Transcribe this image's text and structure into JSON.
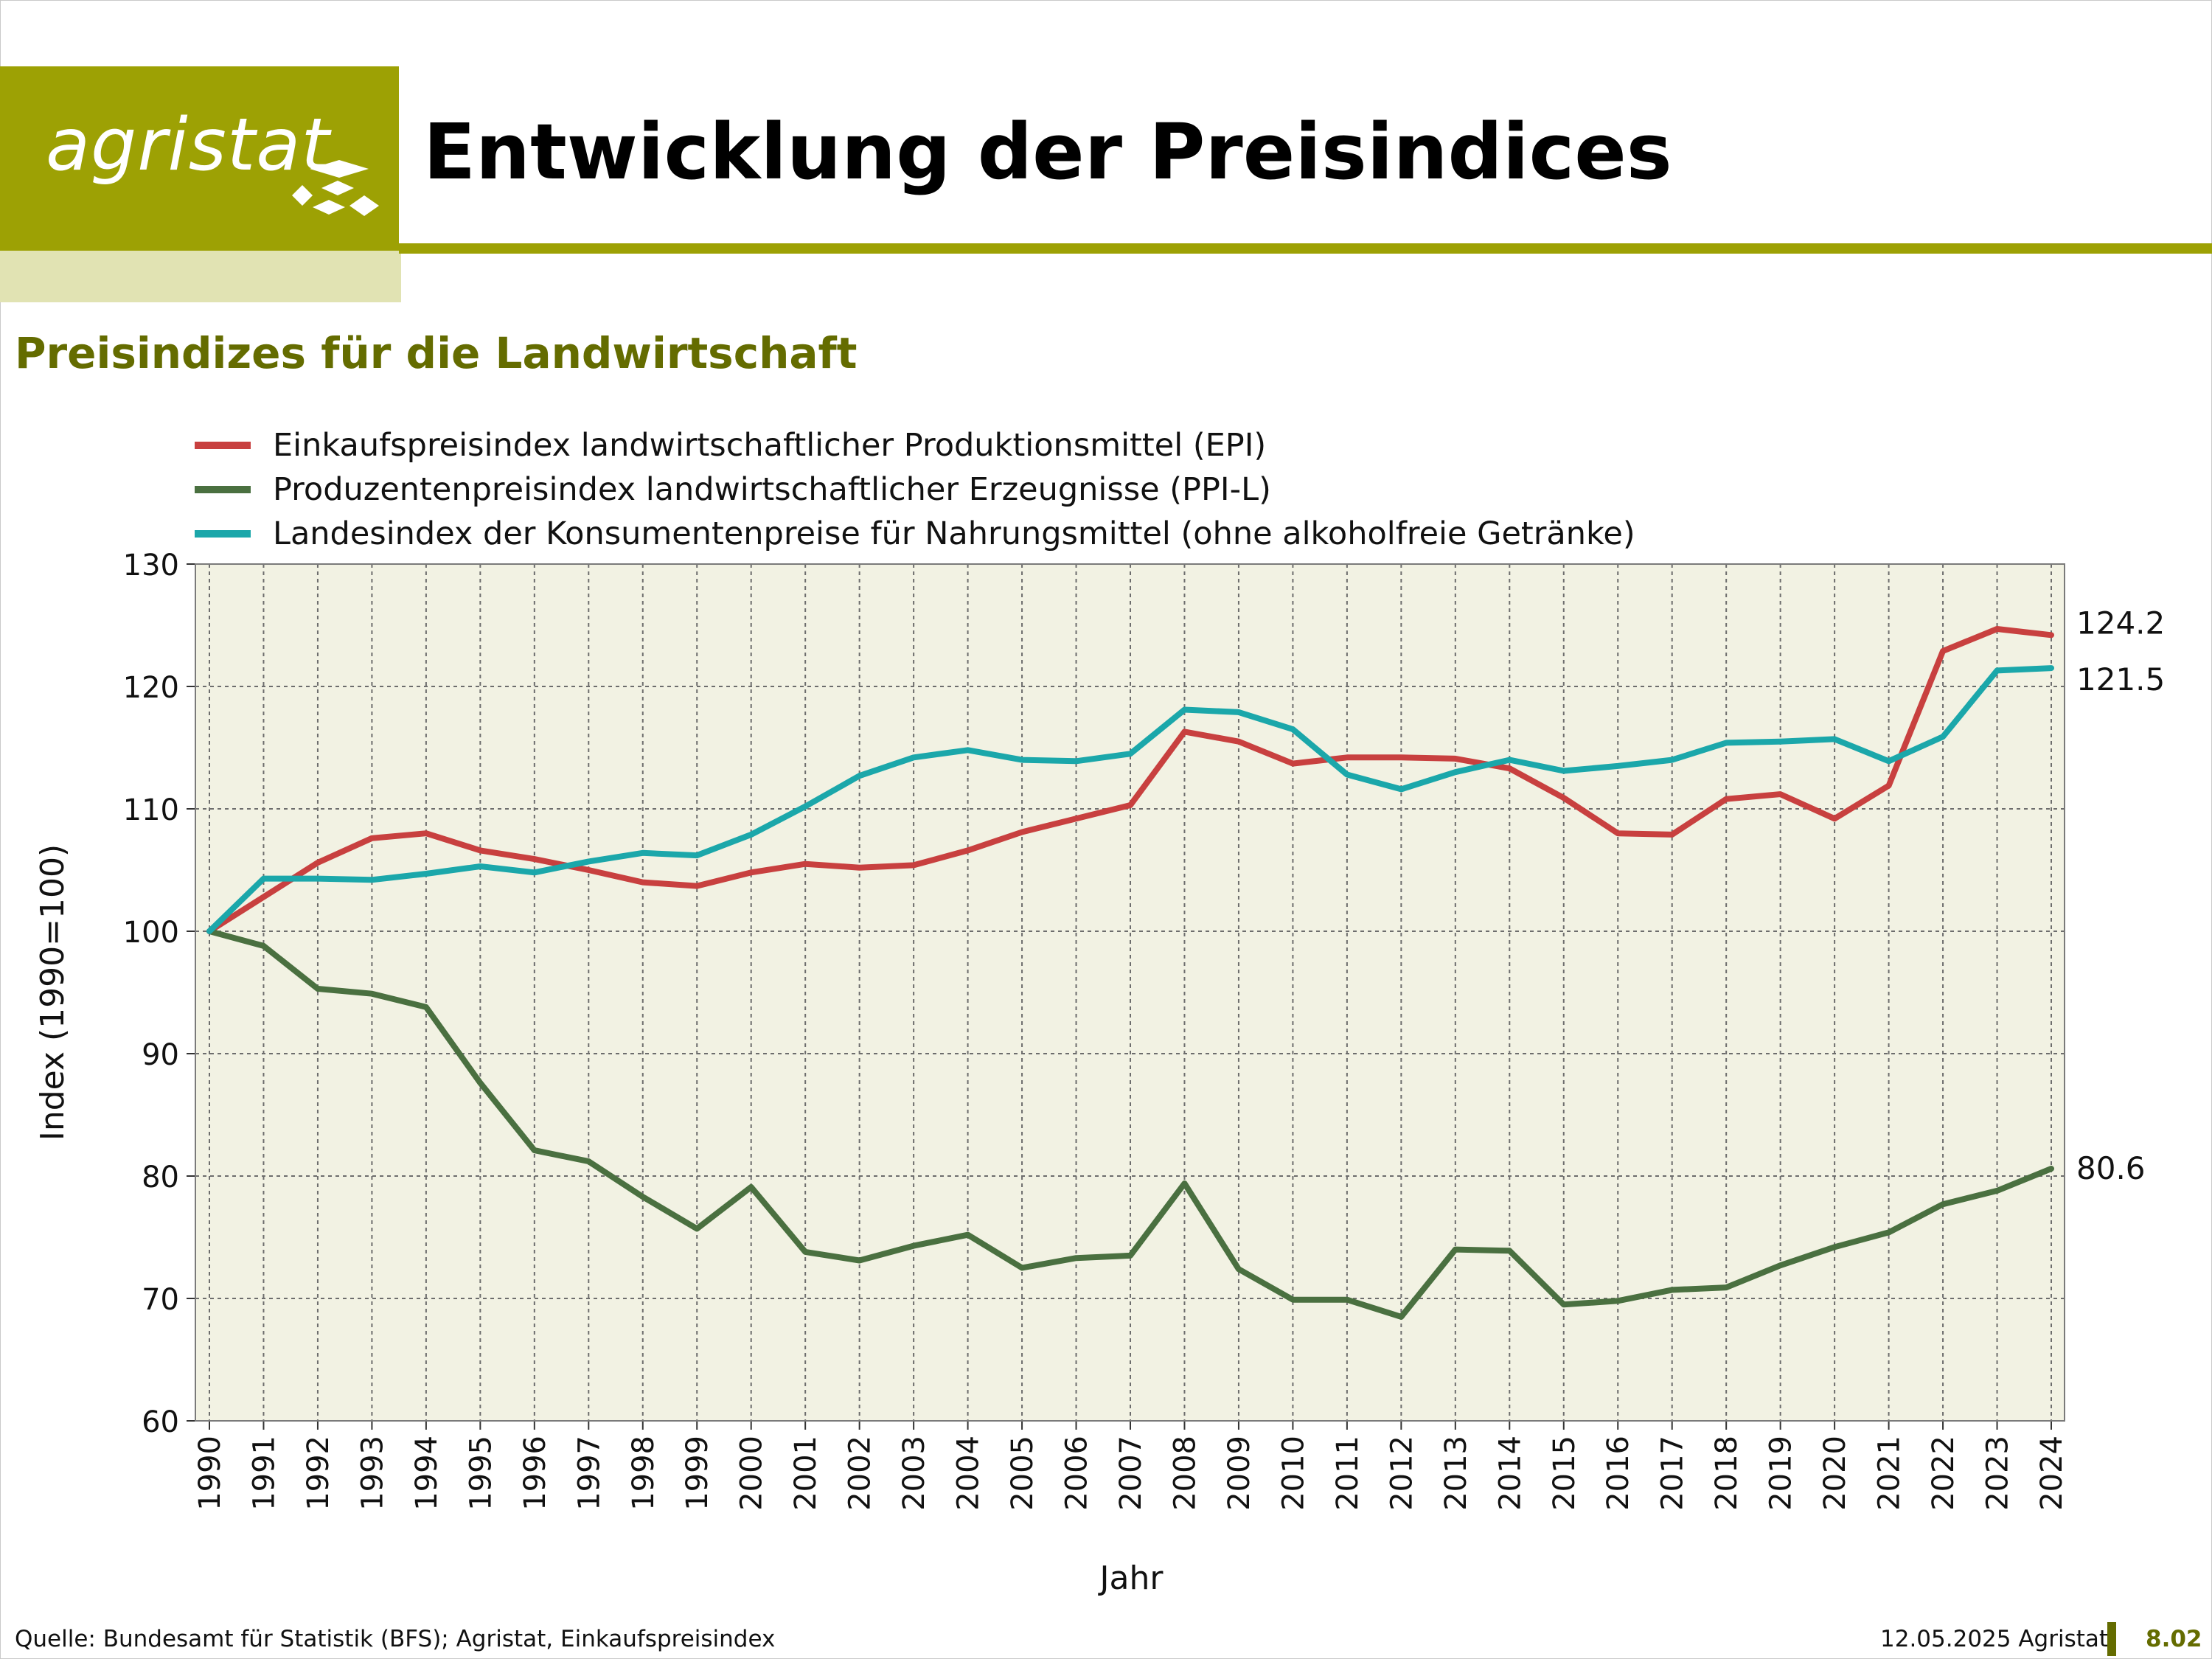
{
  "header": {
    "logo_text": "agristat",
    "title": "Entwicklung der Preisindices"
  },
  "colors": {
    "brand": "#9da104",
    "brand_light": "#e1e3b3",
    "subtitle": "#646c00",
    "plot_bg": "#f2f2e3"
  },
  "chart_data": {
    "type": "line",
    "title": "Preisindizes für die Landwirtschaft",
    "xlabel": "Jahr",
    "ylabel": "Index (1990=100)",
    "ylim": [
      60,
      130
    ],
    "yticks": [
      60,
      70,
      80,
      90,
      100,
      110,
      120,
      130
    ],
    "grid": true,
    "legend_position": "top-left",
    "x": [
      "1990",
      "1991",
      "1992",
      "1993",
      "1994",
      "1995",
      "1996",
      "1997",
      "1998",
      "1999",
      "2000",
      "2001",
      "2002",
      "2003",
      "2004",
      "2005",
      "2006",
      "2007",
      "2008",
      "2009",
      "2010",
      "2011",
      "2012",
      "2013",
      "2014",
      "2015",
      "2016",
      "2017",
      "2018",
      "2019",
      "2020",
      "2021",
      "2022",
      "2023",
      "2024"
    ],
    "series": [
      {
        "name": "Einkaufspreisindex landwirtschaftlicher Produktionsmittel (EPI)",
        "color": "#c8403f",
        "end_label": "124.2",
        "values": [
          100,
          102.8,
          105.6,
          107.6,
          108.0,
          106.6,
          105.9,
          105.0,
          104.0,
          103.7,
          104.8,
          105.5,
          105.2,
          105.4,
          106.6,
          108.1,
          109.2,
          110.3,
          116.3,
          115.5,
          113.7,
          114.2,
          114.2,
          114.1,
          113.3,
          110.9,
          108.0,
          107.9,
          110.8,
          111.2,
          109.2,
          111.9,
          122.9,
          124.7,
          124.2
        ]
      },
      {
        "name": "Produzentenpreisindex landwirtschaftlicher Erzeugnisse (PPI-L)",
        "color": "#4a7040",
        "end_label": "80.6",
        "values": [
          100,
          98.8,
          95.3,
          94.9,
          93.8,
          87.6,
          82.1,
          81.2,
          78.3,
          75.7,
          79.1,
          73.8,
          73.1,
          74.3,
          75.2,
          72.5,
          73.3,
          73.5,
          79.4,
          72.4,
          69.9,
          69.9,
          68.5,
          74.0,
          73.9,
          69.5,
          69.8,
          70.7,
          70.9,
          72.7,
          74.2,
          75.4,
          77.7,
          78.8,
          80.6
        ]
      },
      {
        "name": "Landesindex der Konsumentenpreise für Nahrungsmittel (ohne alkoholfreie Getränke)",
        "color": "#1ba7aa",
        "end_label": "121.5",
        "values": [
          100,
          104.3,
          104.3,
          104.2,
          104.7,
          105.3,
          104.8,
          105.7,
          106.4,
          106.2,
          107.9,
          110.2,
          112.7,
          114.2,
          114.8,
          114.0,
          113.9,
          114.5,
          118.1,
          117.9,
          116.5,
          112.8,
          111.6,
          113.0,
          114.0,
          113.1,
          113.5,
          114.0,
          115.4,
          115.5,
          115.7,
          113.9,
          115.9,
          121.3,
          121.5
        ]
      }
    ]
  },
  "footer": {
    "source": "Quelle: Bundesamt für Statistik (BFS); Agristat, Einkaufspreisindex",
    "date": "12.05.2025 Agristat",
    "page": "8.02"
  }
}
